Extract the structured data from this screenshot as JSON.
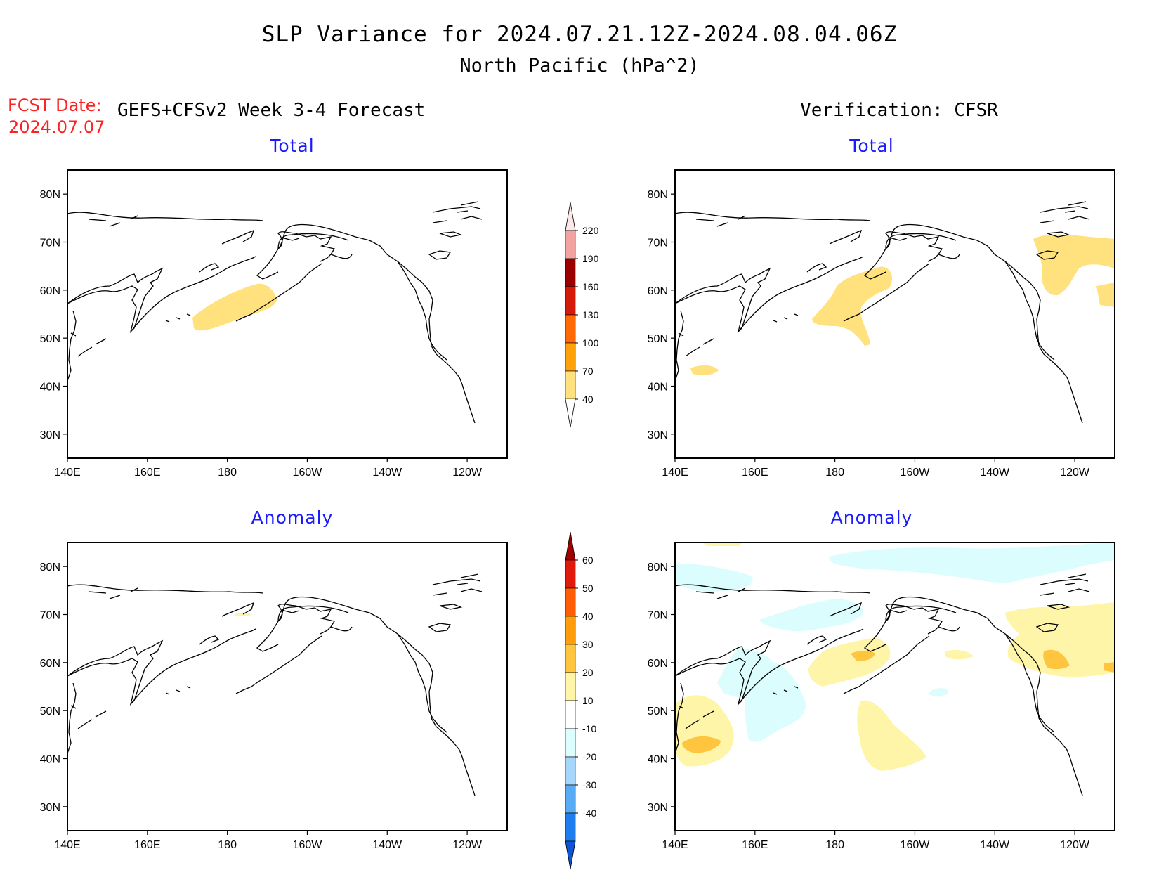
{
  "header": {
    "title": "SLP Variance for 2024.07.21.12Z-2024.08.04.06Z",
    "subtitle": "North Pacific (hPa^2)"
  },
  "fcst": {
    "label": "FCST Date:",
    "date": "2024.07.07"
  },
  "columns": {
    "left": "GEFS+CFSv2 Week 3-4 Forecast",
    "right": "Verification: CFSR"
  },
  "panels": [
    {
      "id": "fcst-total",
      "title": "Total"
    },
    {
      "id": "verif-total",
      "title": "Total"
    },
    {
      "id": "fcst-anomaly",
      "title": "Anomaly"
    },
    {
      "id": "verif-anomaly",
      "title": "Anomaly"
    }
  ],
  "axes": {
    "lat_labels": [
      "80N",
      "70N",
      "60N",
      "50N",
      "40N",
      "30N"
    ],
    "lat_values": [
      80,
      70,
      60,
      50,
      40,
      30
    ],
    "lon_labels": [
      "140E",
      "160E",
      "180",
      "160W",
      "140W",
      "120W"
    ],
    "lon_values": [
      140,
      160,
      180,
      200,
      220,
      240
    ],
    "lat_range": [
      25,
      85
    ],
    "lon_range": [
      140,
      250
    ]
  },
  "colorbars": {
    "total": {
      "labels": [
        "220",
        "190",
        "160",
        "130",
        "100",
        "70",
        "40"
      ],
      "colors": [
        "#fde6e6",
        "#f3a2a2",
        "#9a0000",
        "#d61a0a",
        "#ff6a06",
        "#ffa20a",
        "#ffe27e"
      ]
    },
    "anomaly": {
      "labels": [
        "60",
        "50",
        "40",
        "30",
        "20",
        "10",
        "-10",
        "-20",
        "-30",
        "-40"
      ],
      "colors": [
        "#a00000",
        "#e01b0c",
        "#ff5e06",
        "#ff9e0a",
        "#ffc53e",
        "#fff5a8",
        "#ffffff",
        "#dcfdfd",
        "#a6d6fb",
        "#5aabf5",
        "#1e7ef0",
        "#0b55d6"
      ]
    }
  },
  "colors": {
    "title_blue": "#1a1aff",
    "fcst_red": "#ff2020",
    "total_light": "#ffe27e",
    "anom_yellow": "#fff5a8",
    "anom_orange": "#ffc53e",
    "anom_cyan": "#dcfdfd",
    "anom_blue": "#a6d6fb"
  }
}
